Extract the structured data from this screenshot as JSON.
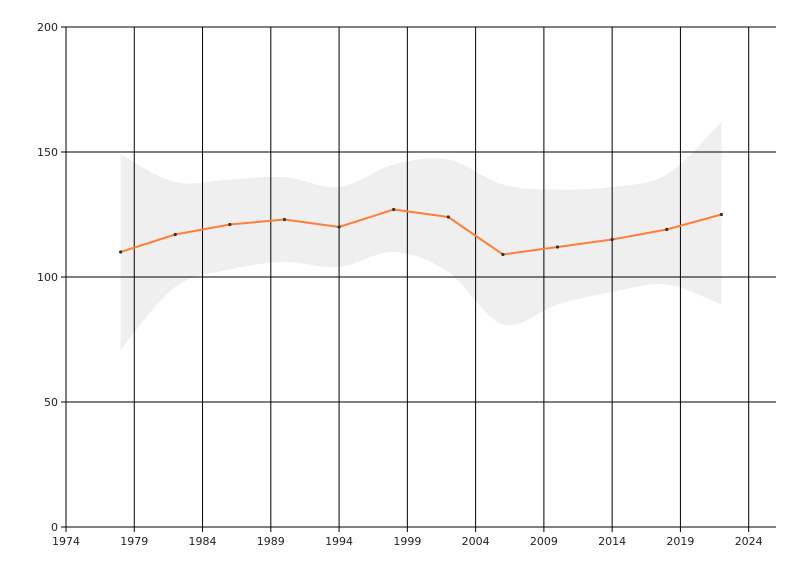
{
  "colors": {
    "background": "#ffffff",
    "grid": "#000000",
    "axis": "#000000",
    "line": "#ff7f3a",
    "band": "#efefef",
    "point": "#333333"
  },
  "chart_data": {
    "type": "line",
    "title": "",
    "xlabel": "",
    "ylabel": "",
    "xlim": [
      1974,
      2026
    ],
    "ylim": [
      0,
      200
    ],
    "grid": true,
    "x_ticks": [
      "1974",
      "1979",
      "1984",
      "1989",
      "1994",
      "1999",
      "2004",
      "2009",
      "2014",
      "2019",
      "2024"
    ],
    "y_ticks": [
      "0",
      "50",
      "100",
      "150",
      "200"
    ],
    "series": [
      {
        "x": [
          1978,
          1982,
          1986,
          1990,
          1994,
          1998,
          2002,
          2006,
          2010,
          2014,
          2018,
          2022
        ],
        "values": [
          110,
          117,
          121,
          123,
          120,
          127,
          124,
          109,
          112,
          115,
          119,
          125
        ],
        "band_upper": [
          149,
          138,
          139,
          140,
          136,
          145,
          147,
          137,
          135,
          136,
          141,
          162
        ],
        "band_lower": [
          71,
          96,
          103,
          106,
          104,
          110,
          102,
          81,
          89,
          94,
          97,
          89
        ]
      }
    ]
  }
}
